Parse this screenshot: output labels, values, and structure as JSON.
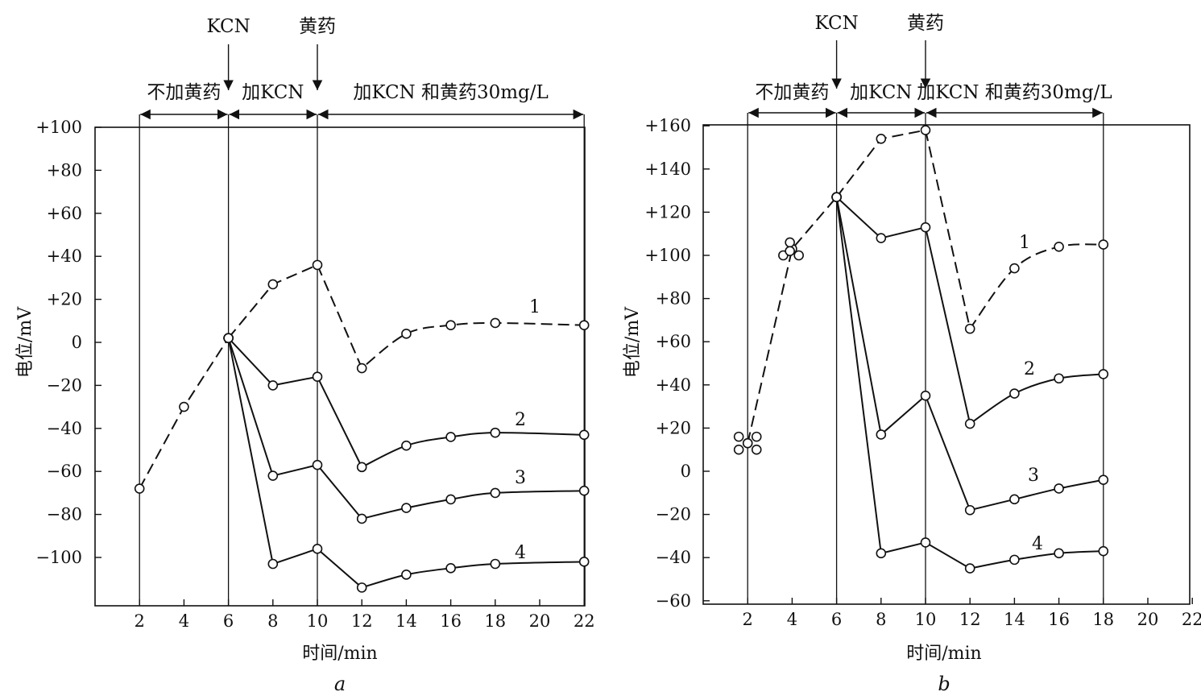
{
  "chart_data": [
    {
      "type": "line",
      "panel_label": "a",
      "xlabel": "时间/min",
      "ylabel": "电位/mV",
      "xlim": [
        0,
        22
      ],
      "ylim": [
        -120,
        100
      ],
      "x_ticks": [
        2,
        4,
        6,
        8,
        10,
        12,
        14,
        16,
        18,
        20,
        22
      ],
      "y_ticks": [
        100,
        80,
        60,
        40,
        20,
        0,
        -20,
        -40,
        -60,
        -80,
        -100
      ],
      "y_tick_labels": [
        "+100",
        "+80",
        "+60",
        "+40",
        "+20",
        "0",
        "−20",
        "−40",
        "−60",
        "−80",
        "−100"
      ],
      "grid": false,
      "event_lines": [
        2,
        6,
        10,
        22
      ],
      "events": [
        {
          "x": 6,
          "label": "KCN"
        },
        {
          "x": 10,
          "label": "黄药"
        }
      ],
      "regions": [
        {
          "from": 2,
          "to": 6,
          "label": "不加黄药"
        },
        {
          "from": 6,
          "to": 10,
          "label": "加KCN"
        },
        {
          "from": 10,
          "to": 22,
          "label": "加KCN 和黄药30mg/L"
        }
      ],
      "shared_start": {
        "x": [
          2,
          4,
          6
        ],
        "y": [
          -68,
          -30,
          2
        ],
        "style": "dashed"
      },
      "series": [
        {
          "name": "1",
          "style": "dashed",
          "x": [
            6,
            8,
            10,
            12,
            14,
            16,
            18,
            22
          ],
          "y": [
            2,
            27,
            36,
            -12,
            4,
            8,
            9,
            8
          ]
        },
        {
          "name": "2",
          "style": "solid",
          "x": [
            6,
            8,
            10,
            12,
            14,
            16,
            18,
            22
          ],
          "y": [
            2,
            -20,
            -16,
            -58,
            -48,
            -44,
            -42,
            -43
          ]
        },
        {
          "name": "3",
          "style": "solid",
          "x": [
            6,
            8,
            10,
            12,
            14,
            16,
            18,
            22
          ],
          "y": [
            2,
            -62,
            -57,
            -82,
            -77,
            -73,
            -70,
            -69
          ]
        },
        {
          "name": "4",
          "style": "solid",
          "x": [
            6,
            8,
            10,
            12,
            14,
            16,
            18,
            22
          ],
          "y": [
            2,
            -103,
            -96,
            -114,
            -108,
            -105,
            -103,
            -102
          ]
        }
      ],
      "extra_points": []
    },
    {
      "type": "line",
      "panel_label": "b",
      "xlabel": "时间/min",
      "ylabel": "电位/mV",
      "xlim": [
        0,
        22
      ],
      "ylim": [
        -60,
        160
      ],
      "x_ticks": [
        2,
        4,
        6,
        8,
        10,
        12,
        14,
        16,
        18,
        20,
        22
      ],
      "y_ticks": [
        160,
        140,
        120,
        100,
        80,
        60,
        40,
        20,
        0,
        -20,
        -40,
        -60
      ],
      "y_tick_labels": [
        "+160",
        "+140",
        "+120",
        "+100",
        "+80",
        "+60",
        "+40",
        "+20",
        "0",
        "−20",
        "−40",
        "−60"
      ],
      "grid": false,
      "event_lines": [
        2,
        6,
        10,
        18
      ],
      "events": [
        {
          "x": 6,
          "label": "KCN"
        },
        {
          "x": 10,
          "label": "黄药"
        }
      ],
      "regions": [
        {
          "from": 2,
          "to": 6,
          "label": "不加黄药"
        },
        {
          "from": 6,
          "to": 10,
          "label": "加KCN"
        },
        {
          "from": 10,
          "to": 18,
          "label": "加KCN 和黄药30mg/L"
        }
      ],
      "shared_start": {
        "x": [
          2,
          4,
          6
        ],
        "y": [
          13,
          103,
          127
        ],
        "style": "dashed"
      },
      "series": [
        {
          "name": "1",
          "style": "dashed",
          "x": [
            6,
            8,
            10,
            12,
            14,
            16,
            18
          ],
          "y": [
            127,
            154,
            158,
            66,
            94,
            104,
            105
          ]
        },
        {
          "name": "2",
          "style": "solid",
          "x": [
            6,
            8,
            10,
            12,
            14,
            16,
            18
          ],
          "y": [
            127,
            108,
            113,
            22,
            36,
            43,
            45
          ]
        },
        {
          "name": "3",
          "style": "solid",
          "x": [
            6,
            8,
            10,
            12,
            14,
            16,
            18
          ],
          "y": [
            127,
            17,
            35,
            -18,
            -13,
            -8,
            -4
          ]
        },
        {
          "name": "4",
          "style": "solid",
          "x": [
            6,
            8,
            10,
            12,
            14,
            16,
            18
          ],
          "y": [
            127,
            -38,
            -33,
            -45,
            -41,
            -38,
            -37
          ]
        }
      ],
      "extra_points": [
        {
          "x": 1.6,
          "y": 16
        },
        {
          "x": 2.4,
          "y": 16
        },
        {
          "x": 1.6,
          "y": 10
        },
        {
          "x": 2.4,
          "y": 10
        },
        {
          "x": 2,
          "y": 13
        },
        {
          "x": 3.6,
          "y": 100
        },
        {
          "x": 4.3,
          "y": 100
        },
        {
          "x": 3.9,
          "y": 106
        },
        {
          "x": 3.9,
          "y": 102
        }
      ]
    }
  ]
}
